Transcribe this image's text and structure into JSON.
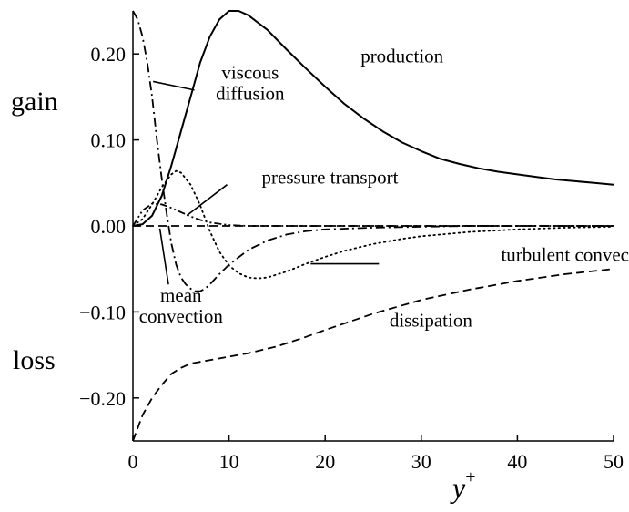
{
  "chart_data": {
    "type": "line",
    "title": "",
    "xlabel": "y",
    "xlabel_superscript": "+",
    "ylabel": "",
    "side_labels": {
      "top": "gain",
      "bottom": "loss"
    },
    "xlim": [
      0,
      50
    ],
    "ylim": [
      -0.25,
      0.25
    ],
    "grid": false,
    "legend": "none",
    "x_ticks": [
      {
        "value": 0,
        "label": "0"
      },
      {
        "value": 10,
        "label": "10"
      },
      {
        "value": 20,
        "label": "20"
      },
      {
        "value": 30,
        "label": "30"
      },
      {
        "value": 40,
        "label": "40"
      },
      {
        "value": 50,
        "label": "50"
      }
    ],
    "y_ticks": [
      {
        "value": 0.2,
        "label": "0.20"
      },
      {
        "value": 0.1,
        "label": "0.10"
      },
      {
        "value": 0.0,
        "label": "0.00"
      },
      {
        "value": -0.1,
        "label": "−0.10"
      },
      {
        "value": -0.2,
        "label": "−0.20"
      }
    ],
    "series": [
      {
        "name": "production",
        "style": "solid",
        "x": [
          0,
          1,
          2,
          3,
          4,
          5,
          6,
          7,
          8,
          9,
          10,
          11,
          12,
          14,
          16,
          18,
          20,
          22,
          24,
          26,
          28,
          30,
          32,
          34,
          36,
          38,
          40,
          42,
          44,
          46,
          48,
          50
        ],
        "y": [
          0,
          0.002,
          0.012,
          0.035,
          0.07,
          0.11,
          0.15,
          0.19,
          0.22,
          0.24,
          0.25,
          0.25,
          0.245,
          0.228,
          0.205,
          0.183,
          0.162,
          0.142,
          0.125,
          0.11,
          0.097,
          0.087,
          0.078,
          0.072,
          0.067,
          0.063,
          0.06,
          0.057,
          0.054,
          0.052,
          0.05,
          0.048
        ]
      },
      {
        "name": "viscous diffusion",
        "style": "dashdot",
        "x": [
          0,
          0.5,
          1,
          1.5,
          2,
          2.5,
          3,
          3.5,
          4,
          4.5,
          5,
          5.5,
          6,
          6.5,
          7,
          7.5,
          8,
          9,
          10,
          12,
          14,
          16,
          18,
          20,
          25,
          30,
          35,
          40,
          45,
          50
        ],
        "y": [
          0.25,
          0.24,
          0.22,
          0.19,
          0.15,
          0.1,
          0.055,
          0.015,
          -0.02,
          -0.045,
          -0.06,
          -0.068,
          -0.073,
          -0.076,
          -0.076,
          -0.073,
          -0.068,
          -0.056,
          -0.045,
          -0.028,
          -0.017,
          -0.01,
          -0.006,
          -0.004,
          -0.002,
          -0.001,
          0,
          0,
          0,
          0
        ]
      },
      {
        "name": "pressure transport",
        "style": "dashdotdot",
        "x": [
          0,
          1,
          2,
          3,
          4,
          5,
          6,
          7,
          8,
          10,
          12,
          15,
          20,
          30,
          40,
          50
        ],
        "y": [
          0,
          0.018,
          0.026,
          0.025,
          0.021,
          0.016,
          0.011,
          0.007,
          0.004,
          0.001,
          0,
          0,
          0,
          0,
          0,
          0
        ]
      },
      {
        "name": "turbulent convection",
        "style": "dotted",
        "x": [
          0,
          1,
          2,
          3,
          4,
          4.5,
          5,
          6,
          7,
          8,
          9,
          10,
          11,
          12,
          13,
          14,
          16,
          18,
          20,
          22,
          25,
          28,
          30,
          35,
          40,
          45,
          50
        ],
        "y": [
          0,
          0.008,
          0.025,
          0.045,
          0.06,
          0.064,
          0.062,
          0.048,
          0.024,
          -0.006,
          -0.03,
          -0.046,
          -0.055,
          -0.06,
          -0.061,
          -0.06,
          -0.053,
          -0.044,
          -0.036,
          -0.029,
          -0.021,
          -0.015,
          -0.012,
          -0.007,
          -0.004,
          -0.002,
          -0.001
        ]
      },
      {
        "name": "mean convection",
        "style": "dashed",
        "x": [
          0,
          50
        ],
        "y": [
          0,
          0
        ]
      },
      {
        "name": "dissipation",
        "style": "dashed",
        "x": [
          0,
          0.5,
          1,
          2,
          3,
          4,
          5,
          6,
          8,
          10,
          12,
          15,
          18,
          20,
          25,
          30,
          35,
          40,
          45,
          50
        ],
        "y": [
          -0.25,
          -0.235,
          -0.22,
          -0.2,
          -0.185,
          -0.172,
          -0.165,
          -0.16,
          -0.156,
          -0.152,
          -0.148,
          -0.14,
          -0.129,
          -0.121,
          -0.102,
          -0.086,
          -0.074,
          -0.064,
          -0.056,
          -0.05
        ]
      }
    ],
    "annotations": [
      {
        "id": "production",
        "lines": [
          "production"
        ],
        "x": 28,
        "y": 0.19,
        "pointer": null
      },
      {
        "id": "viscous-diffusion",
        "lines": [
          "viscous",
          "diffusion"
        ],
        "x": 12.2,
        "y": 0.171,
        "pointer": {
          "from": [
            6.4,
            0.158
          ],
          "to": [
            2.1,
            0.168
          ]
        }
      },
      {
        "id": "pressure-transport",
        "lines": [
          "pressure transport"
        ],
        "x": 20.5,
        "y": 0.049,
        "pointer": {
          "from": [
            9.8,
            0.048
          ],
          "to": [
            5.6,
            0.012
          ]
        }
      },
      {
        "id": "turbulent-convection",
        "lines": [
          "turbulent convection"
        ],
        "x": 46.5,
        "y": -0.041,
        "pointer": {
          "from": [
            25.6,
            -0.044
          ],
          "to": [
            18.5,
            -0.044
          ]
        }
      },
      {
        "id": "mean-convection",
        "lines": [
          "mean",
          "convection"
        ],
        "x": 5,
        "y": -0.088,
        "pointer": {
          "from": [
            3.7,
            -0.068
          ],
          "to": [
            2.8,
            -0.003
          ]
        }
      },
      {
        "id": "dissipation",
        "lines": [
          "dissipation"
        ],
        "x": 31,
        "y": -0.117,
        "pointer": null
      }
    ]
  }
}
